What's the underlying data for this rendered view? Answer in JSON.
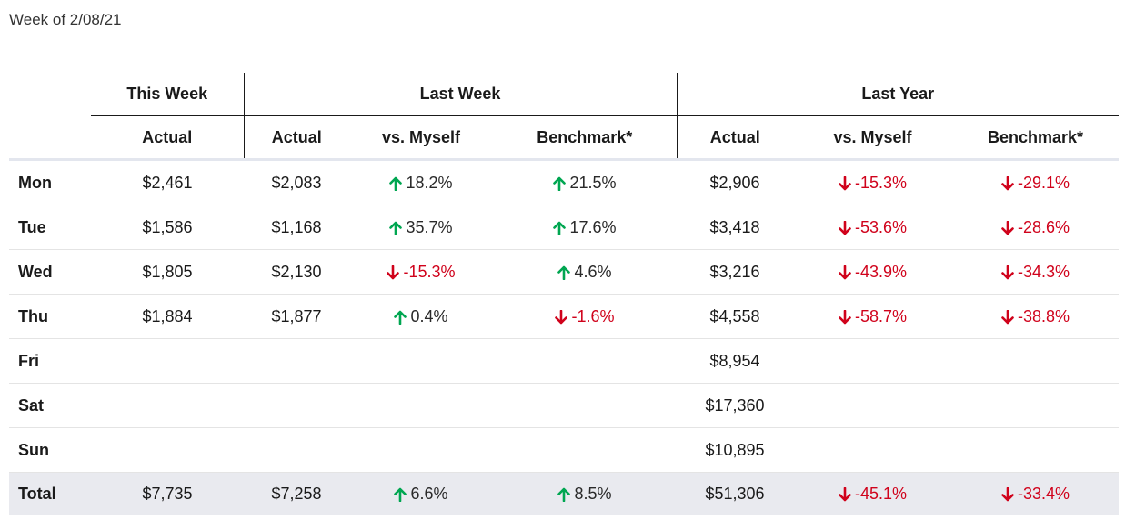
{
  "title": "Week of 2/08/21",
  "headers": {
    "groups": [
      "This Week",
      "Last Week",
      "Last Year"
    ],
    "columns": [
      "Actual",
      "Actual",
      "vs. Myself",
      "Benchmark*",
      "Actual",
      "vs. Myself",
      "Benchmark*"
    ]
  },
  "colors": {
    "up": "#00a651",
    "down": "#d0021b"
  },
  "rows": [
    {
      "day": "Mon",
      "cells": [
        {
          "text": "$2,461"
        },
        {
          "text": "$2,083"
        },
        {
          "text": "18.2%",
          "dir": "up"
        },
        {
          "text": "21.5%",
          "dir": "up"
        },
        {
          "text": "$2,906"
        },
        {
          "text": "-15.3%",
          "dir": "down"
        },
        {
          "text": "-29.1%",
          "dir": "down"
        }
      ]
    },
    {
      "day": "Tue",
      "cells": [
        {
          "text": "$1,586"
        },
        {
          "text": "$1,168"
        },
        {
          "text": "35.7%",
          "dir": "up"
        },
        {
          "text": "17.6%",
          "dir": "up"
        },
        {
          "text": "$3,418"
        },
        {
          "text": "-53.6%",
          "dir": "down"
        },
        {
          "text": "-28.6%",
          "dir": "down"
        }
      ]
    },
    {
      "day": "Wed",
      "cells": [
        {
          "text": "$1,805"
        },
        {
          "text": "$2,130"
        },
        {
          "text": "-15.3%",
          "dir": "down"
        },
        {
          "text": "4.6%",
          "dir": "up"
        },
        {
          "text": "$3,216"
        },
        {
          "text": "-43.9%",
          "dir": "down"
        },
        {
          "text": "-34.3%",
          "dir": "down"
        }
      ]
    },
    {
      "day": "Thu",
      "cells": [
        {
          "text": "$1,884"
        },
        {
          "text": "$1,877"
        },
        {
          "text": "0.4%",
          "dir": "up"
        },
        {
          "text": "-1.6%",
          "dir": "down"
        },
        {
          "text": "$4,558"
        },
        {
          "text": "-58.7%",
          "dir": "down"
        },
        {
          "text": "-38.8%",
          "dir": "down"
        }
      ]
    },
    {
      "day": "Fri",
      "cells": [
        {
          "text": ""
        },
        {
          "text": ""
        },
        {
          "text": ""
        },
        {
          "text": ""
        },
        {
          "text": "$8,954"
        },
        {
          "text": ""
        },
        {
          "text": ""
        }
      ]
    },
    {
      "day": "Sat",
      "cells": [
        {
          "text": ""
        },
        {
          "text": ""
        },
        {
          "text": ""
        },
        {
          "text": ""
        },
        {
          "text": "$17,360"
        },
        {
          "text": ""
        },
        {
          "text": ""
        }
      ]
    },
    {
      "day": "Sun",
      "cells": [
        {
          "text": ""
        },
        {
          "text": ""
        },
        {
          "text": ""
        },
        {
          "text": ""
        },
        {
          "text": "$10,895"
        },
        {
          "text": ""
        },
        {
          "text": ""
        }
      ]
    }
  ],
  "total": {
    "day": "Total",
    "cells": [
      {
        "text": "$7,735"
      },
      {
        "text": "$7,258"
      },
      {
        "text": "6.6%",
        "dir": "up"
      },
      {
        "text": "8.5%",
        "dir": "up"
      },
      {
        "text": "$51,306"
      },
      {
        "text": "-45.1%",
        "dir": "down"
      },
      {
        "text": "-33.4%",
        "dir": "down"
      }
    ]
  }
}
